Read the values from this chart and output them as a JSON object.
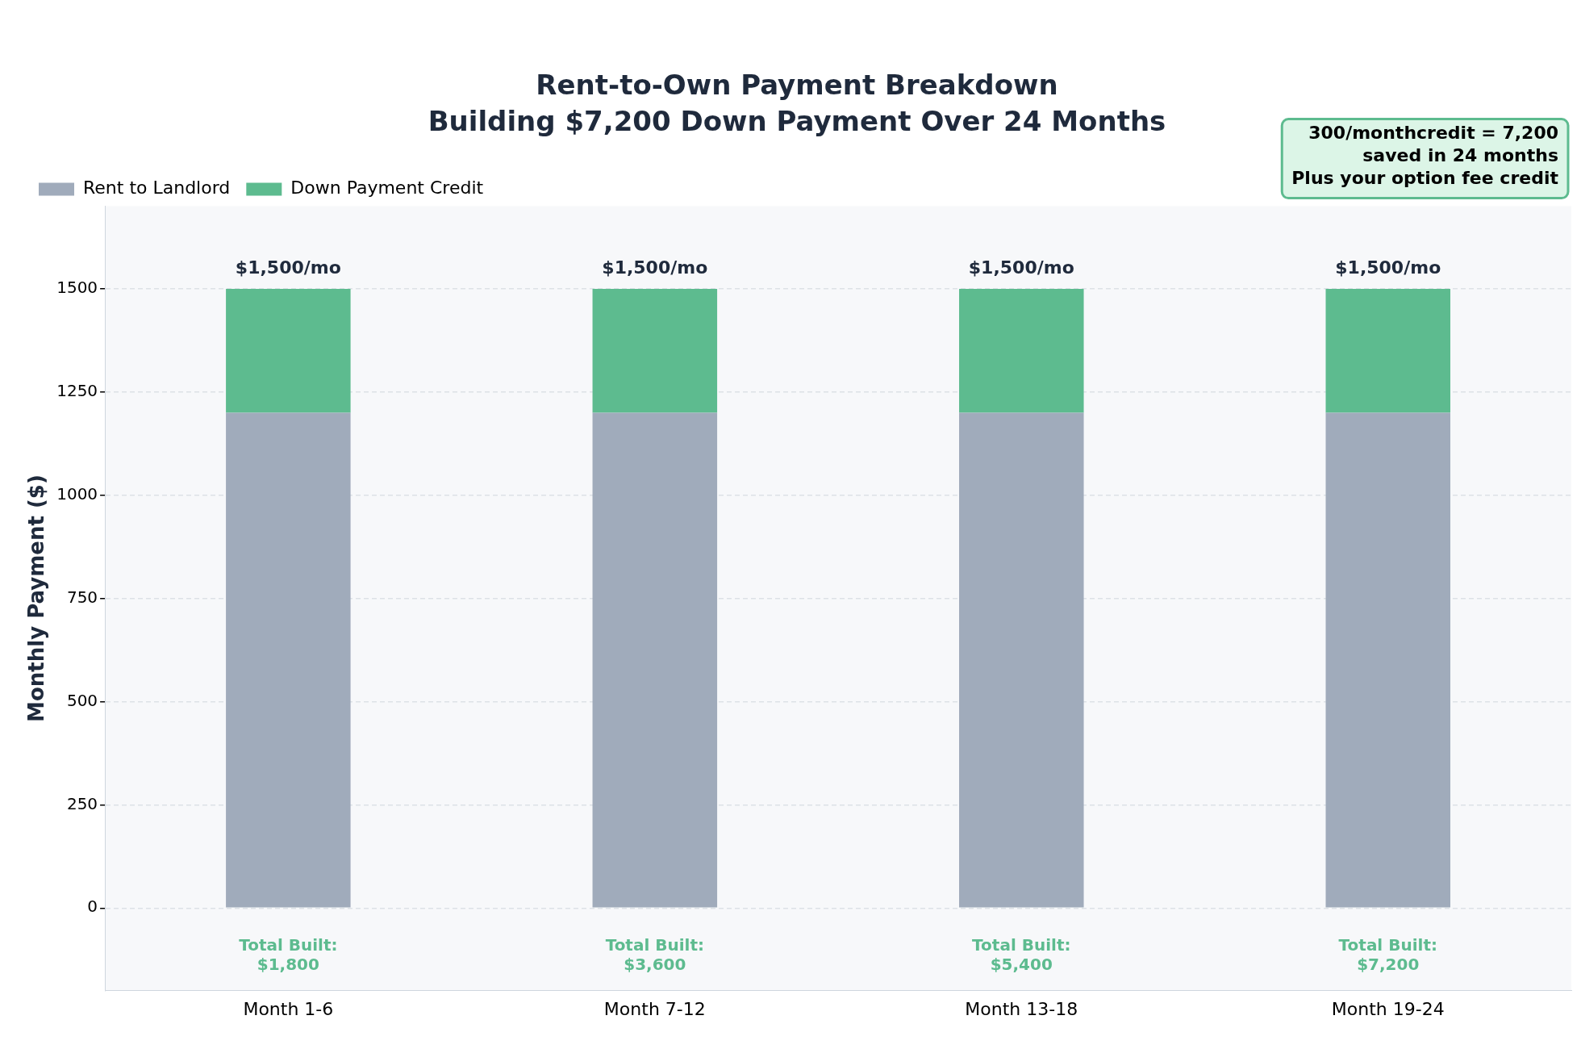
{
  "chart_data": {
    "type": "bar",
    "title": "Rent-to-Own Payment Breakdown",
    "subtitle": "Building $7,200 Down Payment Over 24 Months",
    "ylabel": "Monthly Payment ($)",
    "categories": [
      "Month 1-6",
      "Month 7-12",
      "Month 13-18",
      "Month 19-24"
    ],
    "series": [
      {
        "name": "Rent to Landlord",
        "color": "#a0abbb",
        "values": [
          1200,
          1200,
          1200,
          1200
        ]
      },
      {
        "name": "Down Payment Credit",
        "color": "#5dbb8f",
        "values": [
          300,
          300,
          300,
          300
        ]
      }
    ],
    "stacked": true,
    "ylim": [
      -200,
      1700
    ],
    "yticks": [
      0,
      250,
      500,
      750,
      1000,
      1250,
      1500
    ],
    "grid": "y",
    "legend": "top left",
    "totals": [
      "$1,500/mo",
      "$1,500/mo",
      "$1,500/mo",
      "$1,500/mo"
    ],
    "annotations": [
      "Total Built:\n$1,800",
      "Total Built:\n$3,600",
      "Total Built:\n$5,400",
      "Total Built:\n$7,200",
      "300/monthcredit = 7,200\nsaved in 24 months\nPlus your option fee credit"
    ]
  }
}
